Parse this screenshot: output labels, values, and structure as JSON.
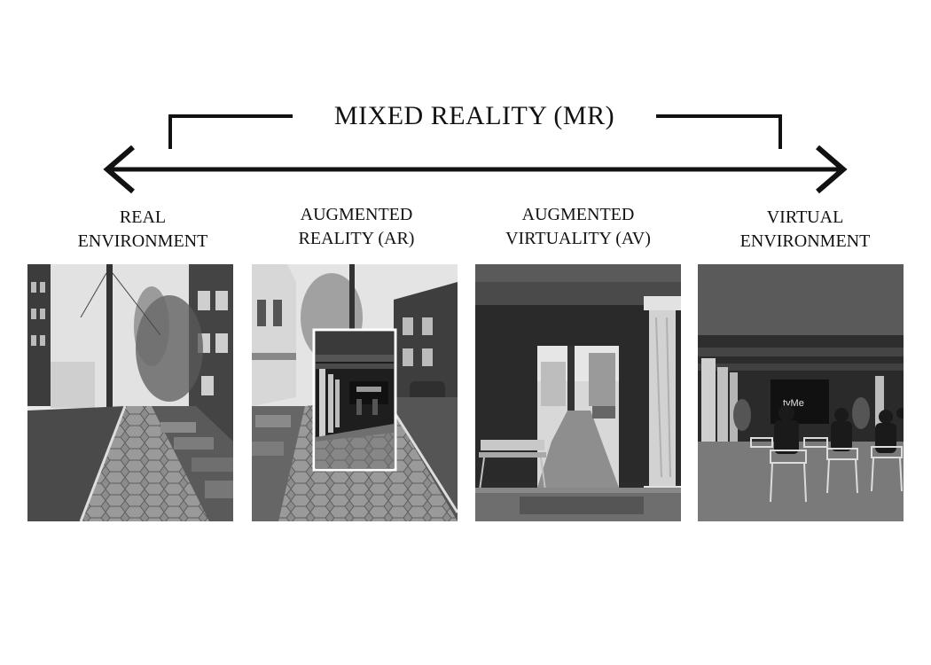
{
  "diagram": {
    "title": "MIXED REALITY (MR)",
    "stages": [
      {
        "line1": "REAL",
        "line2": "ENVIRONMENT"
      },
      {
        "line1": "AUGMENTED",
        "line2": "REALITY (AR)"
      },
      {
        "line1": "AUGMENTED",
        "line2": "VIRTUALITY (AV)"
      },
      {
        "line1": "VIRTUAL",
        "line2": "ENVIRONMENT"
      }
    ],
    "screen_text": "tyMe"
  }
}
